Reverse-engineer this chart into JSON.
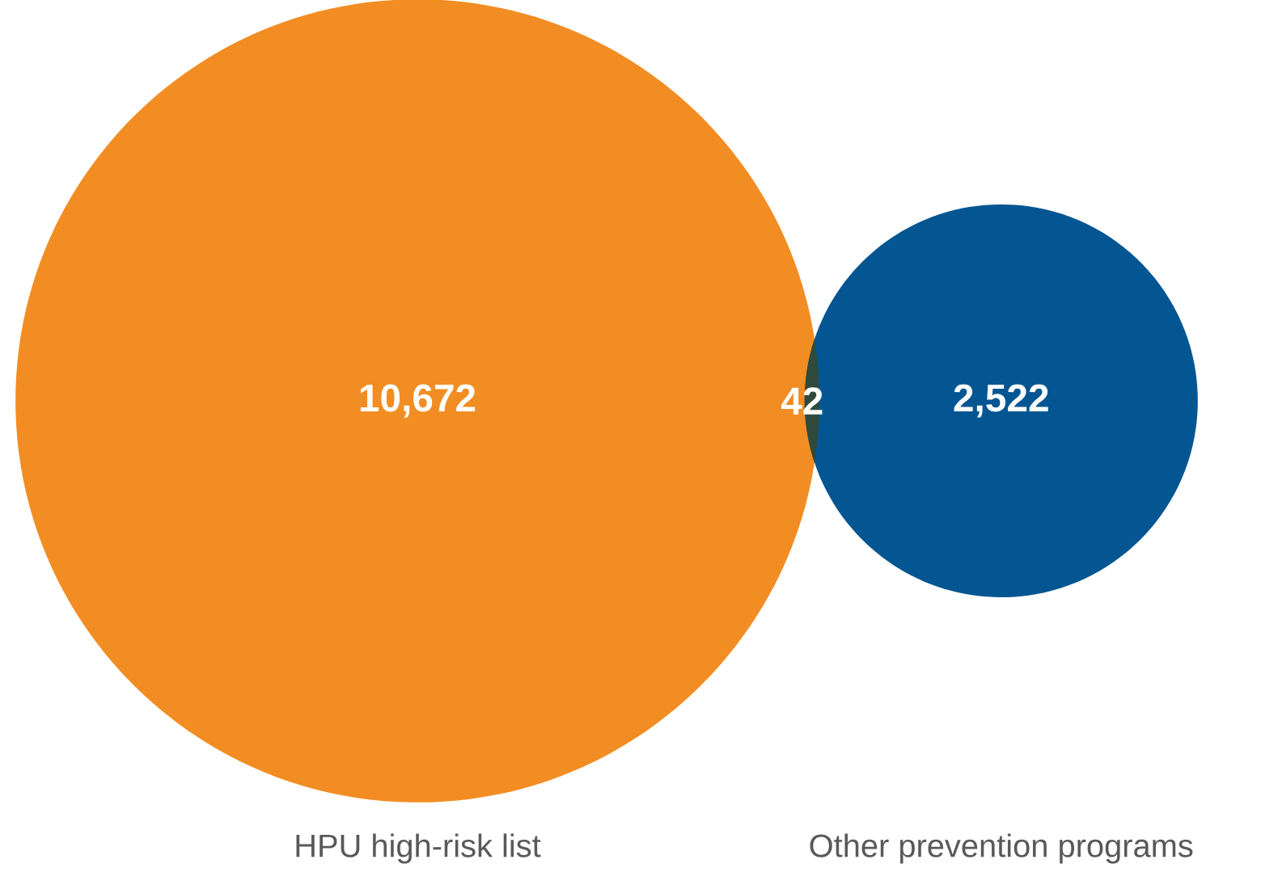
{
  "chart_data": {
    "type": "other",
    "categories": [
      "HPU high-risk list",
      null,
      "Other prevention programs"
    ],
    "values": [
      10672,
      42,
      2522
    ],
    "value_labels": [
      "10,672",
      "42",
      "2,522"
    ],
    "colors": [
      "#f28d23",
      "#2f4a3a",
      "#045692"
    ]
  }
}
